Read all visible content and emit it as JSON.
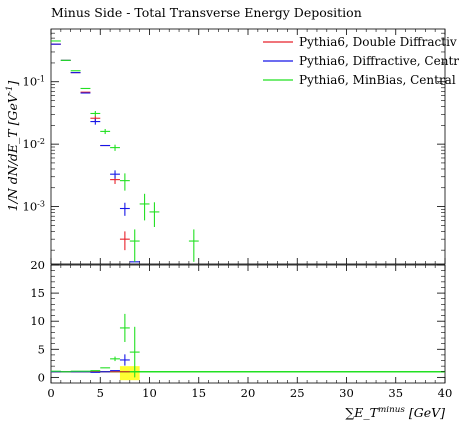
{
  "chart_data": {
    "type": "scatter",
    "title": "Minus Side - Total Transverse Energy Deposition",
    "xlabel": "∑E_T^{minus} [GeV]",
    "ylabel": "1/N dN/dE_T [GeV^{-1}]",
    "xlim": [
      0,
      40
    ],
    "ylim_main": [
      0.00012,
      0.7
    ],
    "ylog_main": true,
    "ylim_ratio": [
      -1,
      20
    ],
    "x_ticks": [
      0,
      5,
      10,
      15,
      20,
      25,
      30,
      35,
      40
    ],
    "y_ticks_main": [
      {
        "value": 0.1,
        "label": "10^{-1}"
      },
      {
        "value": 0.01,
        "label": "10^{-2}"
      },
      {
        "value": 0.001,
        "label": "10^{-3}"
      }
    ],
    "y_ticks_ratio": [
      0,
      5,
      10,
      15,
      20
    ],
    "legend_position": "top-right",
    "series": [
      {
        "name": "Pythia6, Double Diffractiv",
        "color": "#e8212a",
        "points": [
          {
            "x": 0.5,
            "y": 0.4
          },
          {
            "x": 1.5,
            "y": 0.22
          },
          {
            "x": 2.5,
            "y": 0.14
          },
          {
            "x": 3.5,
            "y": 0.068
          },
          {
            "x": 4.5,
            "y": 0.026,
            "yerr": 0.0025
          },
          {
            "x": 5.5,
            "y": 0.0095
          },
          {
            "x": 6.5,
            "y": 0.0027,
            "yerr": 0.0004
          },
          {
            "x": 7.5,
            "y": 0.0003,
            "yerr": 0.0001
          }
        ]
      },
      {
        "name": "Pythia6, Diffractive, Centr",
        "color": "#1515e8",
        "points": [
          {
            "x": 0.5,
            "y": 0.4
          },
          {
            "x": 1.5,
            "y": 0.22
          },
          {
            "x": 2.5,
            "y": 0.14
          },
          {
            "x": 3.5,
            "y": 0.066
          },
          {
            "x": 4.5,
            "y": 0.023,
            "yerr": 0.0025
          },
          {
            "x": 5.5,
            "y": 0.0095
          },
          {
            "x": 6.5,
            "y": 0.0033,
            "yerr": 0.0005
          },
          {
            "x": 7.5,
            "y": 0.00093,
            "yerr": 0.00022
          },
          {
            "x": 8.5,
            "y": 0.00013
          }
        ]
      },
      {
        "name": "Pythia6, MinBias, Central",
        "color": "#22e022",
        "points": [
          {
            "x": 0.5,
            "y": 0.45
          },
          {
            "x": 1.5,
            "y": 0.22
          },
          {
            "x": 2.5,
            "y": 0.15
          },
          {
            "x": 3.5,
            "y": 0.078
          },
          {
            "x": 4.5,
            "y": 0.031,
            "yerr": 0.003
          },
          {
            "x": 5.5,
            "y": 0.016,
            "yerr": 0.0015
          },
          {
            "x": 6.5,
            "y": 0.0088,
            "yerr": 0.001
          },
          {
            "x": 7.5,
            "y": 0.0026,
            "yerr": 0.0008
          },
          {
            "x": 8.5,
            "y": 0.00028,
            "yerr": 0.00015
          },
          {
            "x": 9.5,
            "y": 0.0011,
            "yerr": 0.0005
          },
          {
            "x": 10.5,
            "y": 0.00082,
            "yerr": 0.00035
          },
          {
            "x": 14.5,
            "y": 0.00028,
            "yerr": 0.00015
          }
        ]
      }
    ],
    "ratio_series": [
      {
        "name": "Pythia6, Double Diffractiv",
        "color": "#e8212a",
        "points": [
          {
            "x": 0.5,
            "y": 1.0
          },
          {
            "x": 1.5,
            "y": 1.0
          },
          {
            "x": 2.5,
            "y": 1.0
          },
          {
            "x": 3.5,
            "y": 1.0
          },
          {
            "x": 4.5,
            "y": 1.0
          },
          {
            "x": 5.5,
            "y": 1.0
          },
          {
            "x": 6.5,
            "y": 1.0
          },
          {
            "x": 7.5,
            "y": 1.0
          }
        ]
      },
      {
        "name": "Pythia6, Diffractive, Centr",
        "color": "#1515e8",
        "points": [
          {
            "x": 0.5,
            "y": 1.0
          },
          {
            "x": 1.5,
            "y": 1.0
          },
          {
            "x": 2.5,
            "y": 1.0
          },
          {
            "x": 3.5,
            "y": 1.0
          },
          {
            "x": 4.5,
            "y": 0.9
          },
          {
            "x": 5.5,
            "y": 1.0
          },
          {
            "x": 6.5,
            "y": 1.2
          },
          {
            "x": 7.5,
            "y": 3.1,
            "yerr": 1.0
          }
        ]
      },
      {
        "name": "Pythia6, MinBias, Central",
        "color": "#22e022",
        "points": [
          {
            "x": 0.5,
            "y": 1.1
          },
          {
            "x": 1.5,
            "y": 1.0
          },
          {
            "x": 2.5,
            "y": 1.1
          },
          {
            "x": 3.5,
            "y": 1.1
          },
          {
            "x": 4.5,
            "y": 1.2
          },
          {
            "x": 5.5,
            "y": 1.7
          },
          {
            "x": 6.5,
            "y": 3.3,
            "yerr": 0.4
          },
          {
            "x": 7.5,
            "y": 8.8,
            "yerr": 2.5
          },
          {
            "x": 8.5,
            "y": 4.5,
            "yerr": 4.5
          }
        ]
      }
    ],
    "ratio_band": {
      "color": "#ffff33",
      "bins": [
        {
          "x0": 7,
          "x1": 9,
          "y0": -0.5,
          "y1": 2.0
        }
      ]
    }
  }
}
